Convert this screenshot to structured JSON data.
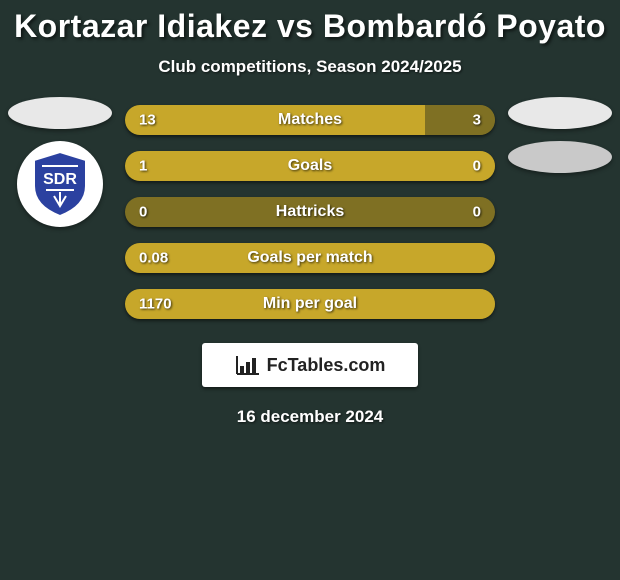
{
  "colors": {
    "background": "#243430",
    "bar_highlight": "#c7a72a",
    "bar_base": "#7f7023",
    "badge_left": "#e8e8e8",
    "badge_right_2": "#c9c9c9",
    "text": "#ffffff"
  },
  "header": {
    "title": "Kortazar Idiakez vs Bombardó Poyato",
    "subtitle": "Club competitions, Season 2024/2025"
  },
  "left_club": {
    "badge_color": "#e8e8e8",
    "logo_bg": "#ffffff",
    "logo_shield_color": "#2b41a0",
    "logo_letters": "SDR"
  },
  "right_club": {
    "badge_color_1": "#e8e8e8",
    "badge_color_2": "#c9c9c9"
  },
  "stats": [
    {
      "label": "Matches",
      "left_value": "13",
      "right_value": "3",
      "left_pct": 81,
      "right_pct": 19,
      "highlight_side": "left"
    },
    {
      "label": "Goals",
      "left_value": "1",
      "right_value": "0",
      "left_pct": 100,
      "right_pct": 0,
      "highlight_side": "left"
    },
    {
      "label": "Hattricks",
      "left_value": "0",
      "right_value": "0",
      "left_pct": 0,
      "right_pct": 0,
      "highlight_side": "none"
    },
    {
      "label": "Goals per match",
      "left_value": "0.08",
      "right_value": "",
      "left_pct": 100,
      "right_pct": 0,
      "highlight_side": "left"
    },
    {
      "label": "Min per goal",
      "left_value": "1170",
      "right_value": "",
      "left_pct": 100,
      "right_pct": 0,
      "highlight_side": "left"
    }
  ],
  "bar_style": {
    "height": 30,
    "radius": 15,
    "gap": 16,
    "label_fontsize": 16,
    "value_fontsize": 15
  },
  "footer": {
    "brand": "FcTables.com",
    "date": "16 december 2024"
  }
}
